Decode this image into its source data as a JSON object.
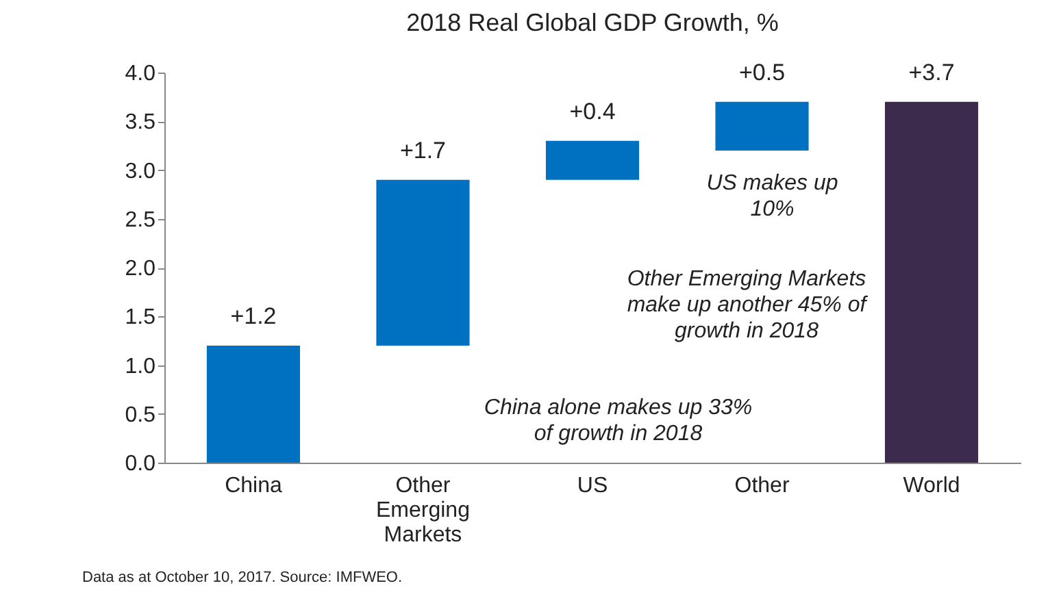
{
  "chart_data": {
    "type": "bar",
    "title": "2018 Real Global GDP Growth, %",
    "categories": [
      "China",
      "Other Emerging Markets",
      "US",
      "Other",
      "World"
    ],
    "values": [
      1.2,
      1.7,
      0.4,
      0.5,
      3.7
    ],
    "base": [
      0,
      1.2,
      2.9,
      3.2,
      0
    ],
    "colors": [
      "#0070c0",
      "#0070c0",
      "#0070c0",
      "#0070c0",
      "#3c2b4c"
    ],
    "value_labels": [
      "+1.2",
      "+1.7",
      "+0.4",
      "+0.5",
      "+3.7"
    ],
    "ylim": [
      0,
      4
    ],
    "yticks": [
      {
        "value": 0,
        "label": "0.0"
      },
      {
        "value": 0.5,
        "label": "0.5"
      },
      {
        "value": 1,
        "label": "1.0"
      },
      {
        "value": 1.5,
        "label": "1.5"
      },
      {
        "value": 2,
        "label": "2.0"
      },
      {
        "value": 2.5,
        "label": "2.5"
      },
      {
        "value": 3,
        "label": "3.0"
      },
      {
        "value": 3.5,
        "label": "3.5"
      },
      {
        "value": 4,
        "label": "4.0"
      }
    ],
    "grid": false,
    "annotations": [
      "US makes up 10%",
      "Other Emerging Markets make up another 45% of growth in 2018",
      "China alone makes up 33% of growth in 2018",
      "Data as at October 10, 2017. Source: IMFWEO."
    ]
  }
}
